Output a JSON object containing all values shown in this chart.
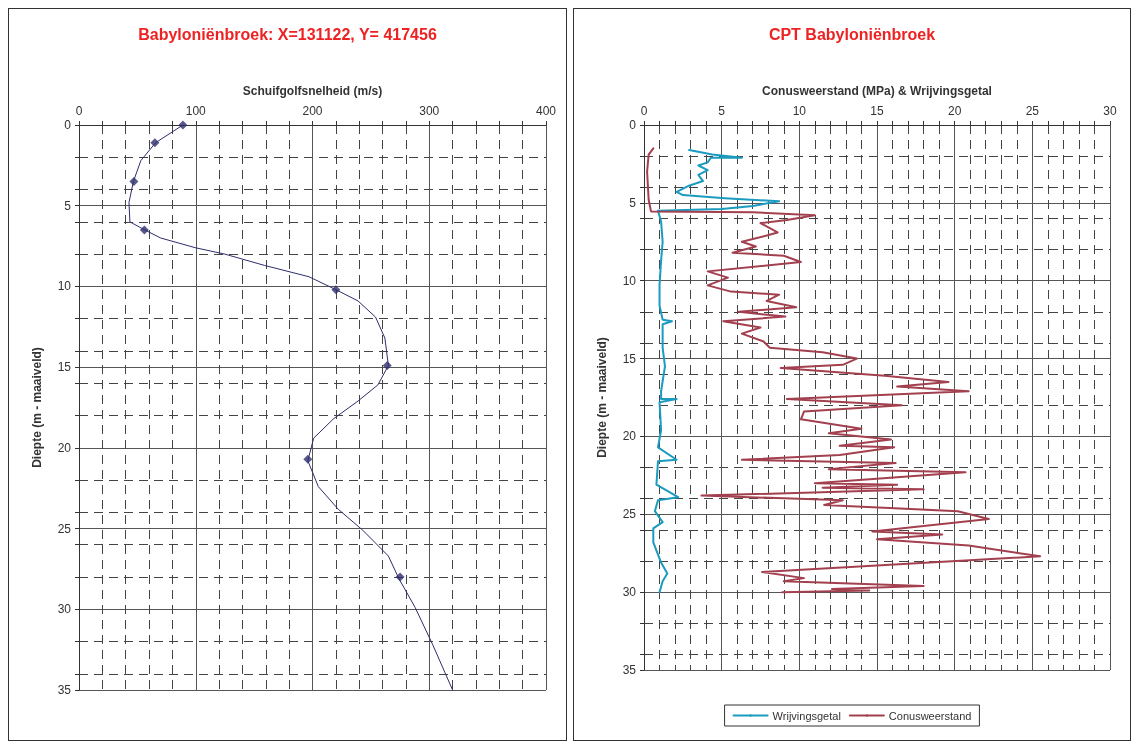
{
  "chart_data": [
    {
      "type": "line",
      "title": "Babyloniënbroek: X=131122, Y= 417456",
      "xlabel": "Schuifgolfsnelheid (m/s)",
      "ylabel": "Diepte (m - maaiveld)",
      "xlim": [
        0,
        400
      ],
      "xticks": [
        0,
        100,
        200,
        300,
        400
      ],
      "ylim": [
        35,
        0
      ],
      "yticks": [
        0,
        5,
        10,
        15,
        20,
        25,
        30,
        35
      ],
      "grid": true,
      "legend": false,
      "series": [
        {
          "color": "#2e2e6e",
          "x": [
            89,
            65.6,
            53,
            46.6,
            42.8,
            43.6,
            56.3,
            70,
            99.5,
            125,
            159,
            197,
            220,
            239,
            254,
            262,
            265,
            256,
            239,
            218,
            201,
            196,
            205,
            222,
            243,
            265,
            274,
            288,
            303,
            320
          ],
          "values": [
            0,
            1.1,
            2.2,
            3.5,
            4.8,
            6.0,
            6.5,
            7.0,
            7.6,
            8.0,
            8.7,
            9.4,
            10.2,
            10.9,
            11.9,
            13.2,
            14.9,
            16.1,
            17.1,
            18.2,
            19.4,
            20.8,
            22.4,
            23.8,
            25.1,
            26.7,
            28.1,
            29.9,
            32.2,
            35
          ]
        },
        {
          "type": "scatter",
          "color": "#2e2e6e",
          "marker": "diamond",
          "x": [
            89,
            65,
            47,
            56,
            220,
            264,
            196,
            275
          ],
          "values": [
            0,
            1.1,
            3.5,
            6.5,
            10.2,
            14.9,
            20.7,
            28
          ]
        }
      ]
    },
    {
      "type": "line",
      "title": "CPT Babyloniënbroek",
      "xlabel": "Conusweerstand (MPa) & Wrijvingsgetal",
      "ylabel": "Diepte (m - maaiveld)",
      "xlim": [
        0,
        30
      ],
      "xticks": [
        0,
        5,
        10,
        15,
        20,
        25,
        30
      ],
      "ylim": [
        35,
        0
      ],
      "yticks": [
        0,
        5,
        10,
        15,
        20,
        25,
        30,
        35
      ],
      "grid": true,
      "legend": "bottom",
      "series": [
        {
          "name": "Wrijvingsgetal",
          "color": "#1a9bbf",
          "x": [
            2.9,
            4.4,
            6.3,
            4.3,
            4.1,
            3.5,
            4.1,
            3.5,
            3.8,
            2.9,
            2.1,
            2.5,
            5.2,
            8.7,
            7,
            5,
            0.9,
            1.1,
            1.2,
            1.1,
            1.0,
            1.0,
            1.2,
            1.8,
            1.2,
            1.2,
            1.35,
            1.1,
            1.1,
            2.1,
            1.0,
            1.1,
            0.9,
            2.1,
            0.9,
            0.8,
            2.2,
            0.9,
            0.7,
            1.2,
            0.6,
            0.6,
            1.1,
            1.5,
            1.2,
            1.0
          ],
          "values": [
            1.6,
            1.9,
            2.1,
            2.1,
            2.4,
            2.6,
            2.9,
            3.2,
            3.6,
            3.9,
            4.3,
            4.5,
            4.7,
            4.9,
            5.2,
            5.4,
            5.5,
            6.2,
            7.5,
            8.7,
            10.3,
            11.6,
            12.5,
            12.6,
            12.8,
            14.3,
            15.5,
            17.1,
            17.6,
            17.6,
            17.8,
            19.6,
            20.7,
            21.5,
            21.6,
            23.1,
            23.9,
            24.1,
            24.8,
            25.5,
            25.9,
            26.8,
            28.1,
            28.8,
            29.3,
            30
          ]
        },
        {
          "name": "Conusweerstand",
          "color": "#a3404f",
          "x": [
            0.6,
            0.3,
            0.2,
            0.3,
            0.45,
            7,
            11,
            9.2,
            7.5,
            8.6,
            7.9,
            6.3,
            7.2,
            5.7,
            9,
            10.1,
            4.1,
            5.4,
            4.1,
            5.6,
            8.7,
            7.9,
            9.8,
            6.1,
            9.1,
            5.1,
            7.5,
            6.3,
            7.7,
            8.1,
            11.5,
            13.7,
            12.8,
            8.8,
            15.5,
            19.6,
            16.3,
            20.9,
            9.2,
            16.6,
            10.3,
            10.1,
            14,
            11.9,
            15.9,
            12.6,
            16.1,
            12.6,
            6.3,
            16.2,
            11.9,
            20.7,
            11,
            16.3,
            11.5,
            18,
            3.7,
            12.8,
            11.6,
            20.2,
            22.2,
            14.7,
            19.2,
            15,
            20.9,
            25.5,
            7.6,
            10.3,
            9.0,
            18,
            12.1,
            14.5,
            8.9
          ],
          "values": [
            1.5,
            1.9,
            3.0,
            4.8,
            5.55,
            5.6,
            5.8,
            6.1,
            6.3,
            6.9,
            7.1,
            7.5,
            7.8,
            8.2,
            8.4,
            8.8,
            9.4,
            9.8,
            10.3,
            10.7,
            10.9,
            11.3,
            11.7,
            12.0,
            12.3,
            12.6,
            13.0,
            13.4,
            13.9,
            14.3,
            14.6,
            15.0,
            15.4,
            15.6,
            16.1,
            16.5,
            16.8,
            17.1,
            17.6,
            18.0,
            18.4,
            18.9,
            19.5,
            19.8,
            20.2,
            20.6,
            20.7,
            21.2,
            21.5,
            21.7,
            22.1,
            22.3,
            23.0,
            23.1,
            23.3,
            23.4,
            23.8,
            24.1,
            24.4,
            24.8,
            25.3,
            26.1,
            26.3,
            26.6,
            27.0,
            27.7,
            28.7,
            29.1,
            29.3,
            29.6,
            29.8,
            29.9,
            30.0
          ]
        }
      ]
    }
  ]
}
